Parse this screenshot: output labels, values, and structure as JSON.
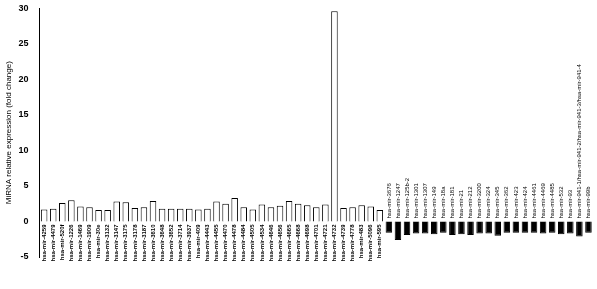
{
  "chart_data": {
    "type": "bar",
    "y_label": "MiRNA relative expression (fold change)",
    "categories": [
      "hsa-mir-4259",
      "hsa-mir-4479",
      "hsa-mir-520f",
      "hsa-mir-1226",
      "hsa-mir-1469",
      "hsa-mir-1909",
      "hsa-mir-30e",
      "hsa-mir-3132",
      "hsa-mir-3147",
      "hsa-mir-3175",
      "hsa-mir-3178",
      "hsa-mir-3187",
      "hsa-mir-3610",
      "hsa-mir-3648",
      "hsa-mir-3652",
      "hsa-mir-3714",
      "hsa-mir-3937",
      "hsa-mir-409",
      "hsa-mir-4443",
      "hsa-mir-4455",
      "hsa-mir-4470",
      "hsa-mir-4478",
      "hsa-mir-4484",
      "hsa-mir-4505",
      "hsa-mir-4534",
      "hsa-mir-4646",
      "hsa-mir-4656",
      "hsa-mir-4665",
      "hsa-mir-4668",
      "hsa-mir-4698",
      "hsa-mir-4701",
      "hsa-mir-4721",
      "hsa-mir-4732",
      "hsa-mir-4739",
      "hsa-mir-4778",
      "hsa-mir-483",
      "hsa-mir-5096",
      "hsa-mir-595",
      "hsa-mir-3676",
      "hsa-mir-1247",
      "hsa-mir-125b-2",
      "hsa-mir-1301",
      "hsa-mir-1307",
      "hsa-mir-149",
      "hsa-mir-18a",
      "hsa-mir-181",
      "hsa-mir-21",
      "hsa-mir-212",
      "hsa-mir-3200",
      "hsa-mir-324",
      "hsa-mir-345",
      "hsa-mir-362",
      "hsa-mir-423",
      "hsa-mir-424",
      "hsa-mir-4461",
      "hsa-mir-4469",
      "hsa-mir-4485",
      "hsa-mir-532",
      "hsa-mir-93",
      "hsa-mir-941-1/hsa-mir-941-2/hsa-mir-941-3/hsa-mir-941-4",
      "hsa-mir-99b"
    ],
    "values": [
      1.7,
      1.8,
      2.6,
      3.0,
      2.1,
      2.0,
      1.6,
      1.6,
      2.8,
      2.7,
      1.9,
      2.0,
      2.9,
      1.8,
      1.8,
      1.8,
      1.8,
      1.7,
      1.8,
      2.8,
      2.5,
      3.3,
      2.0,
      1.7,
      2.4,
      2.0,
      2.2,
      2.9,
      2.5,
      2.3,
      2.0,
      2.4,
      29.6,
      1.9,
      2.0,
      2.3,
      2.1,
      1.6,
      -1.6,
      -2.6,
      -1.9,
      -1.7,
      -1.7,
      -1.8,
      -1.6,
      -1.9,
      -1.8,
      -1.9,
      -1.7,
      -1.7,
      -2.0,
      -1.6,
      -1.6,
      -1.6,
      -1.6,
      -1.7,
      -1.6,
      -1.8,
      -1.7,
      -2.1,
      -1.6
    ],
    "colors": [
      "#ffffff",
      "#ffffff",
      "#ffffff",
      "#ffffff",
      "#ffffff",
      "#ffffff",
      "#ffffff",
      "#ffffff",
      "#ffffff",
      "#ffffff",
      "#ffffff",
      "#ffffff",
      "#ffffff",
      "#ffffff",
      "#ffffff",
      "#ffffff",
      "#ffffff",
      "#ffffff",
      "#ffffff",
      "#ffffff",
      "#ffffff",
      "#ffffff",
      "#ffffff",
      "#ffffff",
      "#ffffff",
      "#ffffff",
      "#ffffff",
      "#ffffff",
      "#ffffff",
      "#ffffff",
      "#ffffff",
      "#ffffff",
      "#ffffff",
      "#ffffff",
      "#ffffff",
      "#ffffff",
      "#ffffff",
      "#ffffff",
      "#000000",
      "#000000",
      "#000000",
      "#000000",
      "#000000",
      "#000000",
      "#000000",
      "#000000",
      "#000000",
      "#000000",
      "#000000",
      "#000000",
      "#000000",
      "#000000",
      "#000000",
      "#000000",
      "#000000",
      "#000000",
      "#000000",
      "#000000",
      "#000000",
      "#000000",
      "#000000"
    ],
    "ylim": [
      -5,
      30
    ],
    "yticks": [
      -5,
      0,
      5,
      10,
      15,
      20,
      25,
      30
    ],
    "grid": false
  }
}
